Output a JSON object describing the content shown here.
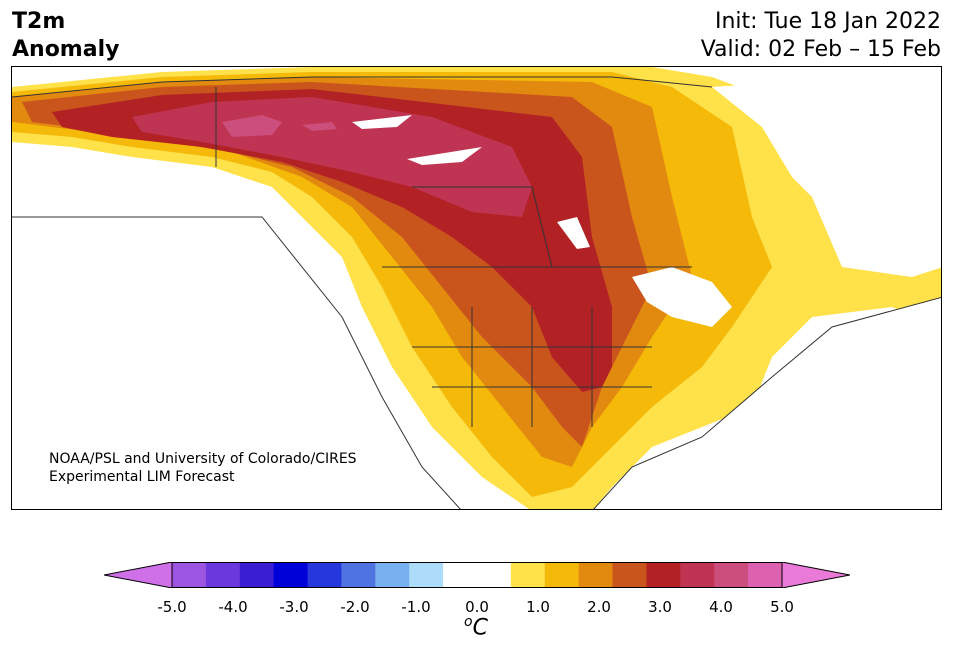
{
  "header": {
    "title_line1": "T2m",
    "title_line2": "Anomaly",
    "init": "Init: Tue 18 Jan 2022",
    "valid": "Valid: 02 Feb – 15 Feb"
  },
  "credit": {
    "line1": "NOAA/PSL and University of Colorado/CIRES",
    "line2": "Experimental LIM Forecast"
  },
  "colorbar": {
    "colors": [
      "#d070e8",
      "#9c55e0",
      "#6a38dc",
      "#3a1ed2",
      "#0000d8",
      "#2638dc",
      "#4f73e0",
      "#78b0ef",
      "#acdcf8",
      "#ffffff",
      "#ffffff",
      "#ffe14a",
      "#f5b90a",
      "#e2890f",
      "#c9551c",
      "#b22124",
      "#bf3452",
      "#cc4e7c",
      "#dc62af",
      "#ea7ad8"
    ],
    "tick_labels": [
      "-5.0",
      "-4.0",
      "-3.0",
      "-2.0",
      "-1.0",
      "0.0",
      "1.0",
      "2.0",
      "3.0",
      "4.0",
      "5.0"
    ],
    "unit_base": "C",
    "unit_sup": "o"
  }
}
